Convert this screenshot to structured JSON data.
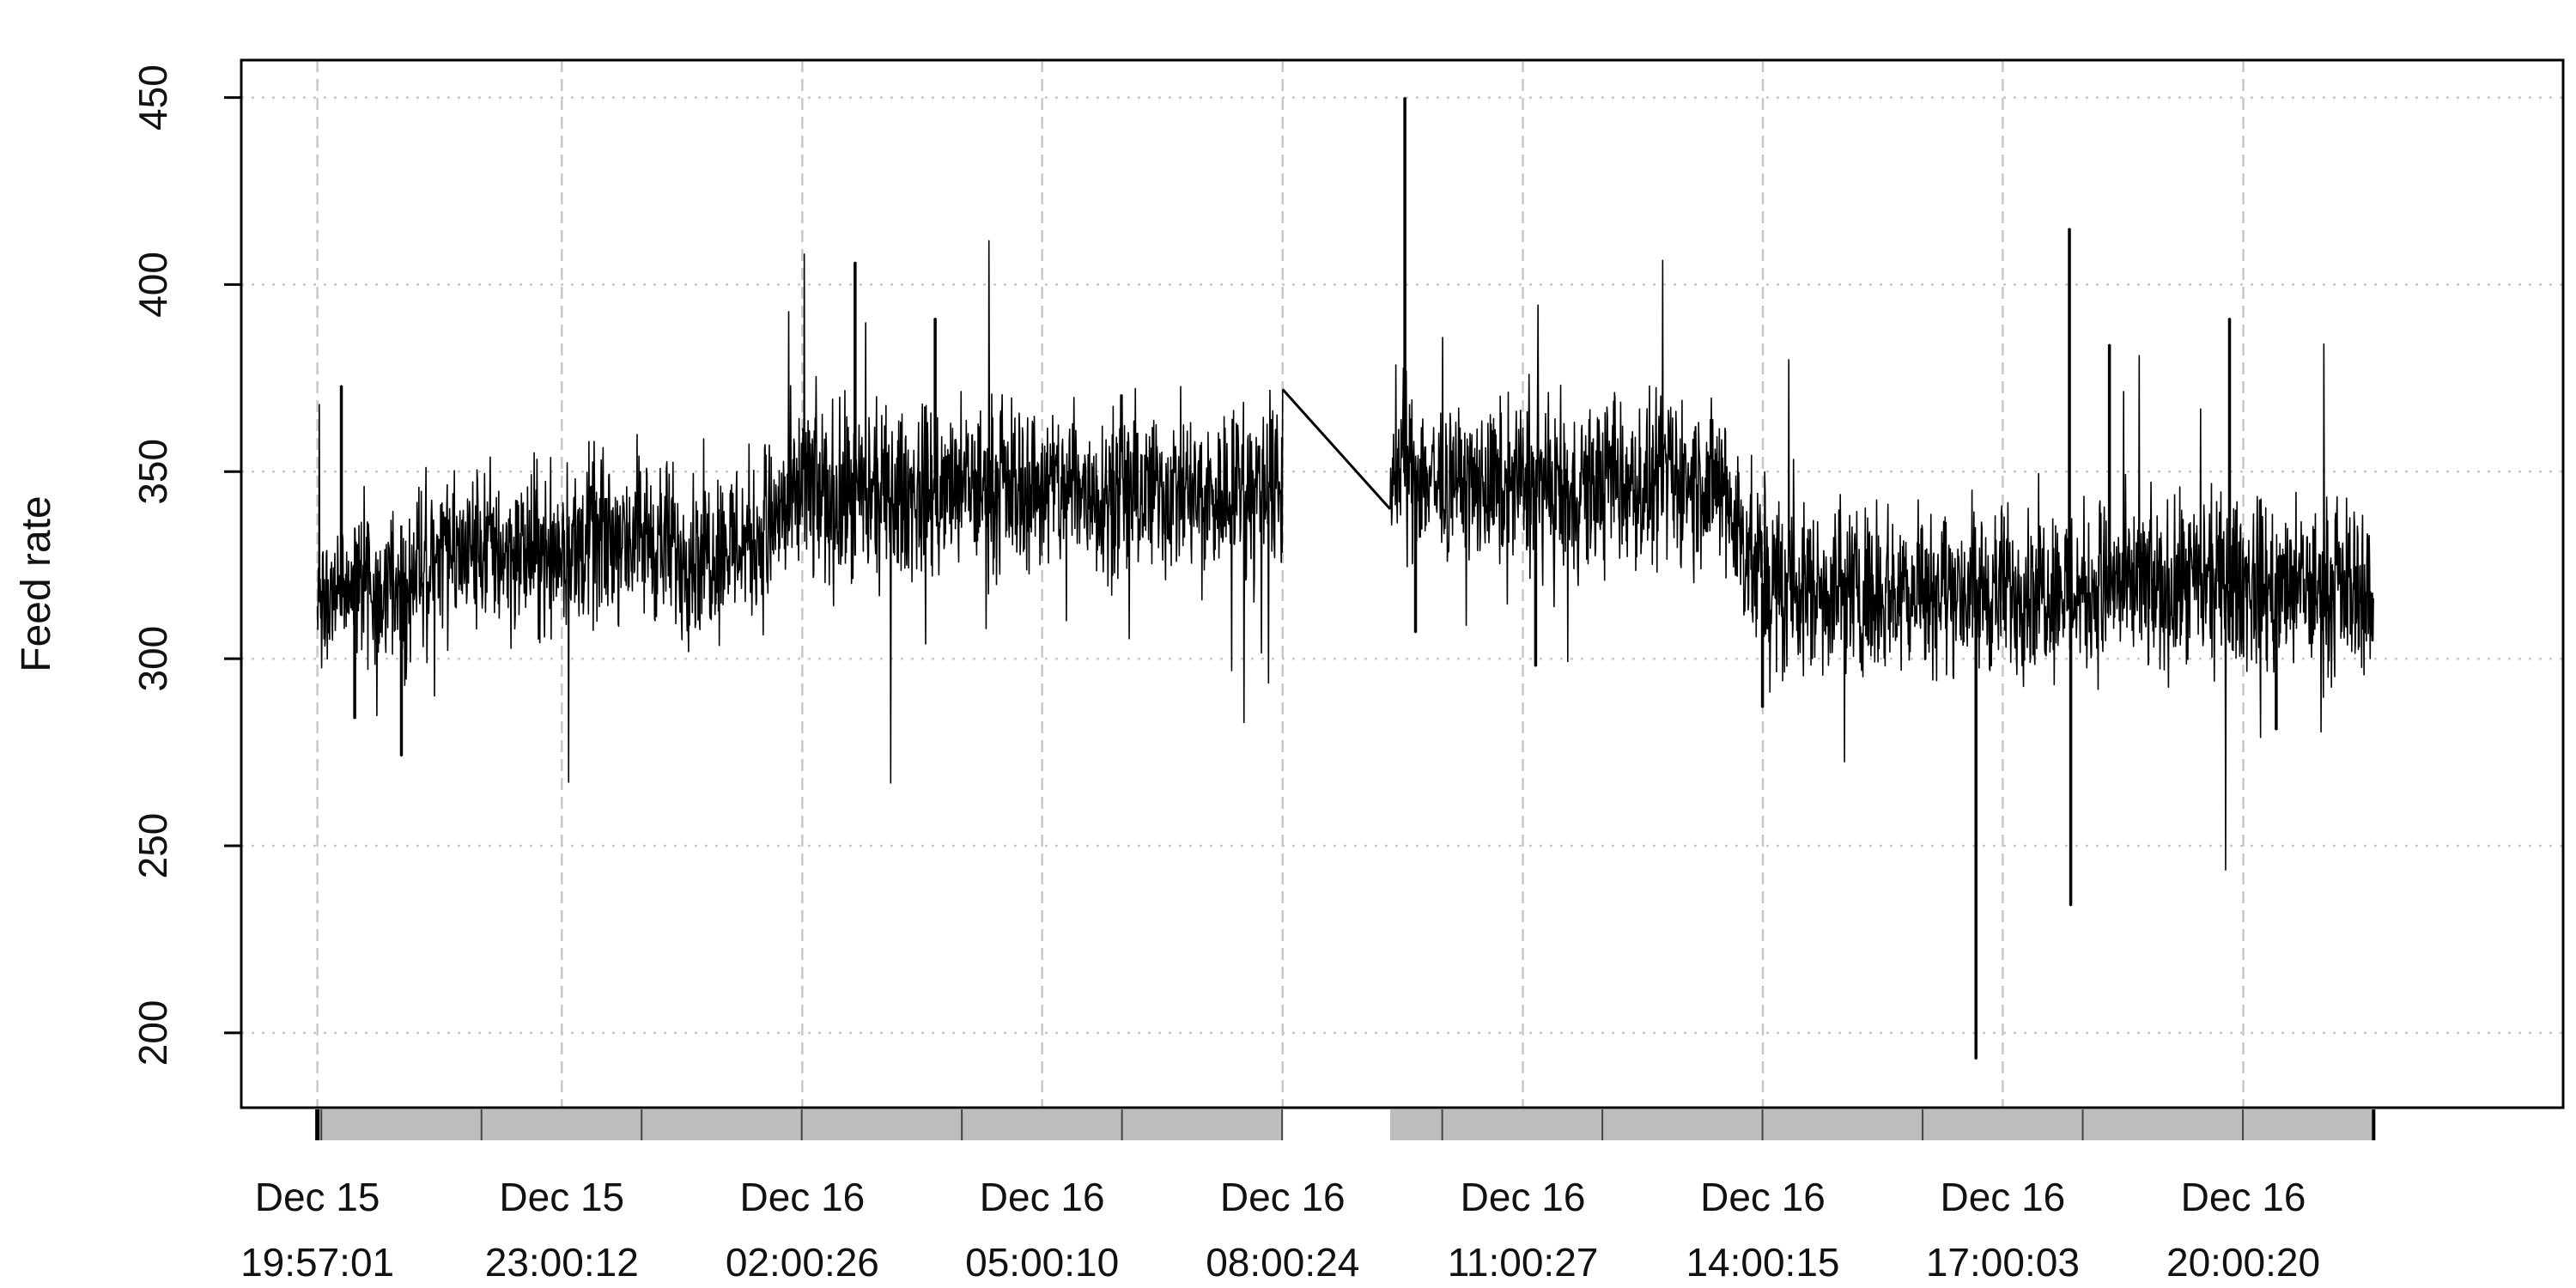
{
  "chart_data": {
    "type": "line",
    "title": "",
    "xlabel": "",
    "ylabel": "Feed rate",
    "ylim": [
      180,
      460
    ],
    "y_ticks": [
      200,
      250,
      300,
      350,
      400,
      450
    ],
    "x_range": [
      "2014-12-15 19:00:00",
      "2014-12-17 00:00:00"
    ],
    "x_ticks": [
      {
        "datetime": "2014-12-15 19:57:01",
        "date_label": "Dec 15",
        "time_label": "19:57:01"
      },
      {
        "datetime": "2014-12-15 23:00:12",
        "date_label": "Dec 15",
        "time_label": "23:00:12"
      },
      {
        "datetime": "2014-12-16 02:00:26",
        "date_label": "Dec 16",
        "time_label": "02:00:26"
      },
      {
        "datetime": "2014-12-16 05:00:10",
        "date_label": "Dec 16",
        "time_label": "05:00:10"
      },
      {
        "datetime": "2014-12-16 08:00:24",
        "date_label": "Dec 16",
        "time_label": "08:00:24"
      },
      {
        "datetime": "2014-12-16 11:00:27",
        "date_label": "Dec 16",
        "time_label": "11:00:27"
      },
      {
        "datetime": "2014-12-16 14:00:15",
        "date_label": "Dec 16",
        "time_label": "14:00:15"
      },
      {
        "datetime": "2014-12-16 17:00:03",
        "date_label": "Dec 16",
        "time_label": "17:00:03"
      },
      {
        "datetime": "2014-12-16 20:00:20",
        "date_label": "Dec 16",
        "time_label": "20:00:20"
      }
    ],
    "grid": true,
    "data_gap": {
      "start": "2014-12-16 08:00:24",
      "end": "2014-12-16 09:21:00"
    },
    "series": [
      {
        "color": "#000000",
        "x": [
          "2014-12-15 19:57:01",
          "2014-12-15 20:30:00",
          "2014-12-15 21:00:00",
          "2014-12-15 21:30:00",
          "2014-12-15 22:00:00",
          "2014-12-15 22:30:00",
          "2014-12-15 23:00:12",
          "2014-12-15 23:30:00",
          "2014-12-16 00:00:00",
          "2014-12-16 00:30:00",
          "2014-12-16 01:00:00",
          "2014-12-16 01:30:00",
          "2014-12-16 02:00:26",
          "2014-12-16 02:30:00",
          "2014-12-16 03:00:00",
          "2014-12-16 03:30:00",
          "2014-12-16 04:00:00",
          "2014-12-16 04:30:00",
          "2014-12-16 05:00:10",
          "2014-12-16 05:30:00",
          "2014-12-16 06:00:00",
          "2014-12-16 06:30:00",
          "2014-12-16 07:00:00",
          "2014-12-16 07:30:00",
          "2014-12-16 08:00:24",
          "2014-12-16 08:30:00",
          "2014-12-16 09:00:00",
          "2014-12-16 09:30:00",
          "2014-12-16 10:00:00",
          "2014-12-16 10:30:00",
          "2014-12-16 11:00:27",
          "2014-12-16 11:30:00",
          "2014-12-16 12:00:00",
          "2014-12-16 12:30:00",
          "2014-12-16 13:00:00",
          "2014-12-16 13:30:00",
          "2014-12-16 14:00:15",
          "2014-12-16 14:30:00",
          "2014-12-16 15:00:00",
          "2014-12-16 15:30:00",
          "2014-12-16 16:00:00",
          "2014-12-16 16:30:00",
          "2014-12-16 17:00:03",
          "2014-12-16 17:30:00",
          "2014-12-16 18:00:00",
          "2014-12-16 18:30:00",
          "2014-12-16 19:00:00",
          "2014-12-16 19:30:00",
          "2014-12-16 20:00:20",
          "2014-12-16 20:30:00",
          "2014-12-16 21:00:00",
          "2014-12-16 21:30:00",
          "2014-12-16 21:38:00"
        ],
        "y": [
          315,
          322,
          320,
          325,
          330,
          328,
          330,
          332,
          333,
          328,
          330,
          333,
          345,
          342,
          343,
          344,
          345,
          346,
          346,
          345,
          344,
          345,
          343,
          344,
          345,
          350,
          340,
          352,
          347,
          345,
          346,
          344,
          347,
          345,
          348,
          345,
          320,
          318,
          320,
          318,
          320,
          318,
          318,
          320,
          318,
          320,
          318,
          320,
          320,
          318,
          318,
          320,
          310
        ],
        "spread": [
          16,
          18,
          20,
          20,
          20,
          20,
          20,
          20,
          20,
          20,
          20,
          20,
          22,
          22,
          20,
          20,
          20,
          20,
          20,
          20,
          20,
          20,
          20,
          20,
          20,
          20,
          20,
          20,
          20,
          20,
          20,
          20,
          20,
          20,
          20,
          20,
          22,
          22,
          20,
          20,
          20,
          20,
          20,
          20,
          20,
          20,
          20,
          20,
          20,
          20,
          20,
          20,
          20
        ],
        "spikes": [
          {
            "x": "2014-12-15 20:15:00",
            "y": 373
          },
          {
            "x": "2014-12-15 20:25:00",
            "y": 284
          },
          {
            "x": "2014-12-15 21:00:00",
            "y": 274
          },
          {
            "x": "2014-12-16 02:40:00",
            "y": 406
          },
          {
            "x": "2014-12-16 03:40:00",
            "y": 391
          },
          {
            "x": "2014-12-16 09:32:00",
            "y": 450
          },
          {
            "x": "2014-12-16 09:40:00",
            "y": 307
          },
          {
            "x": "2014-12-16 11:10:00",
            "y": 298
          },
          {
            "x": "2014-12-16 14:00:00",
            "y": 287
          },
          {
            "x": "2014-12-16 16:40:00",
            "y": 193
          },
          {
            "x": "2014-12-16 17:50:00",
            "y": 415
          },
          {
            "x": "2014-12-16 17:51:00",
            "y": 234
          },
          {
            "x": "2014-12-16 18:20:00",
            "y": 384
          },
          {
            "x": "2014-12-16 19:50:00",
            "y": 391
          },
          {
            "x": "2014-12-16 20:25:00",
            "y": 281
          }
        ]
      }
    ]
  }
}
